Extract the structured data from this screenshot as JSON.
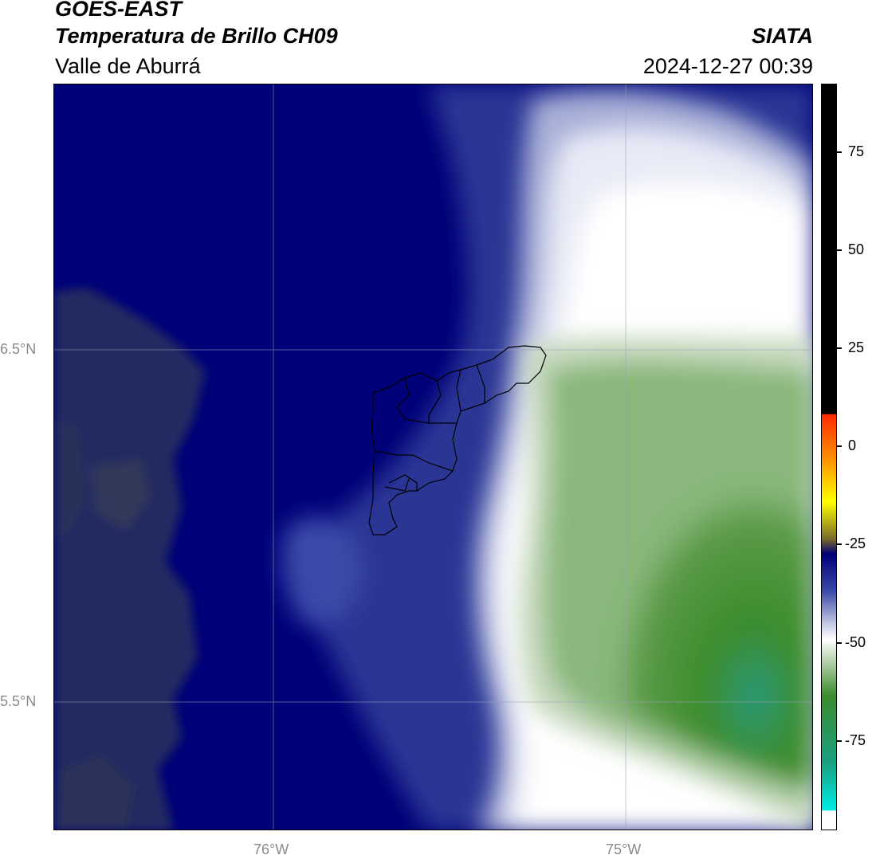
{
  "header": {
    "line1": "GOES-EAST",
    "line2": "Temperatura de Brillo CH09",
    "line3": "Valle de Aburrá",
    "brand": "SIATA",
    "datetime": "2024-12-27 00:39"
  },
  "map": {
    "lat_labels": [
      "6.5°N",
      "5.5°N"
    ],
    "lon_labels": [
      "76°W",
      "75°W"
    ],
    "grid": true,
    "region_outline": "Valle de Aburrá municipalities"
  },
  "colorbar": {
    "ticks": [
      "75",
      "50",
      "25",
      "0",
      "-25",
      "-50",
      "-75"
    ],
    "colors": {
      "black": "#000000",
      "red": "#ff2a00",
      "orange": "#ff8c00",
      "yellow": "#ffff00",
      "olive": "#7a6a2a",
      "navy": "#000078",
      "blue": "#3a4aa8",
      "lavender": "#c8cce6",
      "white": "#ffffff",
      "light_green": "#c0d8b8",
      "green": "#3c8c2c",
      "teal": "#1aa080",
      "cyan": "#00e8e0"
    }
  }
}
